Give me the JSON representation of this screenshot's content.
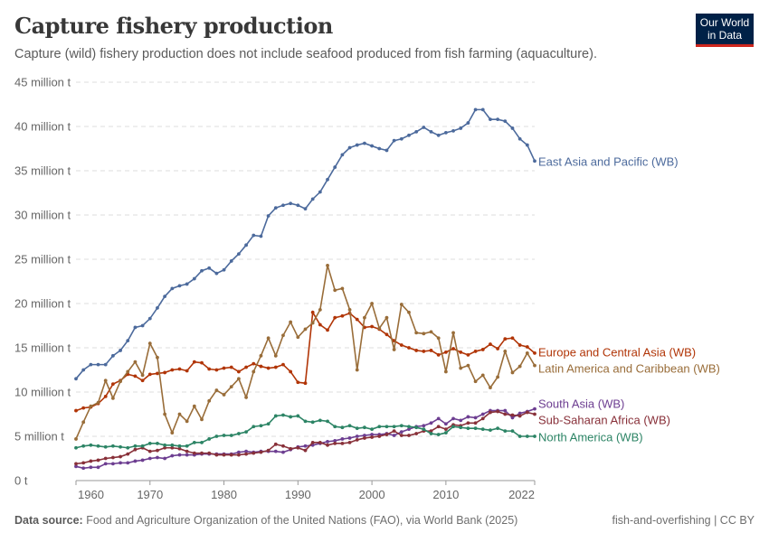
{
  "header": {
    "title": "Capture fishery production",
    "subtitle": "Capture (wild) fishery production does not include seafood produced from fish farming (aquaculture).",
    "logo_line1": "Our World",
    "logo_line2": "in Data"
  },
  "footer": {
    "source_label": "Data source:",
    "source_text": "Food and Agriculture Organization of the United Nations (FAO), via World Bank (2025)",
    "right": "fish-and-overfishing | CC BY"
  },
  "chart_data": {
    "type": "line",
    "title": "Capture fishery production",
    "xlim": [
      1960,
      2022
    ],
    "ylim": [
      0,
      45
    ],
    "x_ticks": [
      1960,
      1970,
      1980,
      1990,
      2000,
      2010,
      2022
    ],
    "y_ticks": [
      0,
      5,
      10,
      15,
      20,
      25,
      30,
      35,
      40,
      45
    ],
    "y_tick_labels": [
      "0 t",
      "5 million t",
      "10 million t",
      "15 million t",
      "20 million t",
      "25 million t",
      "30 million t",
      "35 million t",
      "40 million t",
      "45 million t"
    ],
    "grid": "horizontal dashed",
    "legend": "end-of-line labels (right)",
    "x_start": 1960,
    "series": [
      {
        "name": "East Asia and Pacific (WB)",
        "color": "#4c6a9c",
        "values": [
          11.5,
          12.5,
          13.1,
          13.1,
          13.1,
          14.1,
          14.7,
          15.8,
          17.3,
          17.5,
          18.3,
          19.5,
          20.8,
          21.7,
          22.0,
          22.2,
          22.8,
          23.7,
          24.0,
          23.4,
          23.8,
          24.8,
          25.6,
          26.6,
          27.7,
          27.6,
          29.9,
          30.8,
          31.1,
          31.3,
          31.1,
          30.7,
          31.8,
          32.6,
          34.0,
          35.4,
          36.8,
          37.6,
          37.9,
          38.1,
          37.8,
          37.5,
          37.3,
          38.4,
          38.6,
          39.0,
          39.4,
          39.9,
          39.4,
          39.0,
          39.3,
          39.5,
          39.8,
          40.4,
          41.9,
          41.9,
          40.8,
          40.8,
          40.6,
          39.8,
          38.6,
          37.9,
          36.1
        ]
      },
      {
        "name": "Europe and Central Asia (WB)",
        "color": "#b13507",
        "values": [
          7.9,
          8.2,
          8.3,
          8.7,
          9.5,
          10.9,
          11.3,
          12.0,
          11.8,
          11.3,
          12.0,
          12.1,
          12.2,
          12.5,
          12.6,
          12.4,
          13.4,
          13.3,
          12.6,
          12.5,
          12.7,
          12.8,
          12.3,
          12.8,
          13.2,
          12.9,
          12.7,
          12.8,
          13.1,
          12.3,
          11.1,
          11.0,
          19.0,
          17.6,
          17.0,
          18.4,
          18.6,
          18.9,
          18.2,
          17.3,
          17.4,
          17.1,
          16.5,
          15.8,
          15.3,
          15.0,
          14.7,
          14.6,
          14.7,
          14.2,
          14.5,
          14.9,
          14.5,
          14.2,
          14.6,
          14.8,
          15.4,
          14.9,
          16.0,
          16.1,
          15.3,
          15.1,
          14.4
        ]
      },
      {
        "name": "Latin America and Caribbean (WB)",
        "color": "#996d39",
        "values": [
          4.7,
          6.6,
          8.4,
          8.8,
          11.3,
          9.3,
          11.2,
          12.3,
          13.4,
          11.9,
          15.5,
          13.9,
          7.5,
          5.4,
          7.5,
          6.7,
          8.4,
          6.9,
          9.0,
          10.2,
          9.7,
          10.6,
          11.5,
          9.4,
          12.3,
          14.1,
          16.1,
          14.1,
          16.4,
          17.9,
          16.2,
          17.1,
          17.8,
          19.3,
          24.3,
          21.5,
          21.7,
          19.3,
          12.5,
          18.4,
          20.0,
          17.2,
          18.4,
          14.8,
          19.9,
          19.0,
          16.7,
          16.6,
          16.8,
          16.1,
          12.3,
          16.7,
          12.7,
          13.0,
          11.2,
          11.9,
          10.5,
          11.7,
          14.6,
          12.2,
          12.9,
          14.4,
          13.0
        ]
      },
      {
        "name": "South Asia (WB)",
        "color": "#6d3e91",
        "values": [
          1.6,
          1.4,
          1.5,
          1.5,
          1.9,
          1.9,
          2.0,
          2.0,
          2.2,
          2.3,
          2.5,
          2.6,
          2.5,
          2.8,
          2.9,
          2.9,
          2.9,
          3.0,
          3.0,
          3.0,
          3.0,
          3.0,
          3.2,
          3.3,
          3.2,
          3.3,
          3.3,
          3.3,
          3.2,
          3.5,
          3.8,
          3.9,
          4.0,
          4.2,
          4.4,
          4.5,
          4.7,
          4.8,
          5.0,
          5.1,
          5.2,
          5.2,
          5.3,
          5.1,
          5.5,
          5.8,
          6.1,
          6.2,
          6.5,
          7.0,
          6.4,
          7.0,
          6.8,
          7.2,
          7.1,
          7.5,
          7.9,
          7.9,
          7.9,
          7.1,
          7.6,
          7.8,
          8.1
        ]
      },
      {
        "name": "Sub-Saharan Africa (WB)",
        "color": "#883039",
        "values": [
          1.9,
          2.0,
          2.2,
          2.3,
          2.5,
          2.6,
          2.7,
          3.0,
          3.5,
          3.7,
          3.3,
          3.4,
          3.7,
          3.7,
          3.6,
          3.3,
          3.1,
          3.1,
          3.1,
          2.9,
          2.9,
          2.9,
          2.9,
          3.0,
          3.1,
          3.2,
          3.4,
          4.1,
          3.9,
          3.6,
          3.7,
          3.4,
          4.3,
          4.3,
          4.0,
          4.2,
          4.2,
          4.3,
          4.6,
          4.8,
          4.9,
          5.0,
          5.2,
          5.6,
          5.1,
          5.1,
          5.3,
          5.6,
          5.6,
          6.1,
          5.8,
          6.3,
          6.2,
          6.5,
          6.5,
          7.0,
          7.7,
          7.8,
          7.5,
          7.4,
          7.3,
          7.7,
          7.5
        ]
      },
      {
        "name": "North America (WB)",
        "color": "#2c8465",
        "values": [
          3.7,
          3.9,
          4.0,
          3.9,
          3.8,
          3.9,
          3.8,
          3.7,
          3.9,
          3.9,
          4.2,
          4.2,
          4.0,
          4.0,
          3.9,
          3.9,
          4.3,
          4.3,
          4.7,
          5.0,
          5.1,
          5.1,
          5.3,
          5.5,
          6.1,
          6.2,
          6.4,
          7.3,
          7.4,
          7.2,
          7.3,
          6.7,
          6.6,
          6.8,
          6.7,
          6.1,
          6.0,
          6.2,
          5.9,
          6.0,
          5.8,
          6.1,
          6.1,
          6.1,
          6.2,
          6.1,
          6.0,
          5.8,
          5.3,
          5.2,
          5.4,
          6.1,
          6.0,
          5.9,
          5.9,
          5.8,
          5.7,
          5.9,
          5.6,
          5.6,
          5.0,
          5.0,
          5.0
        ]
      }
    ]
  }
}
